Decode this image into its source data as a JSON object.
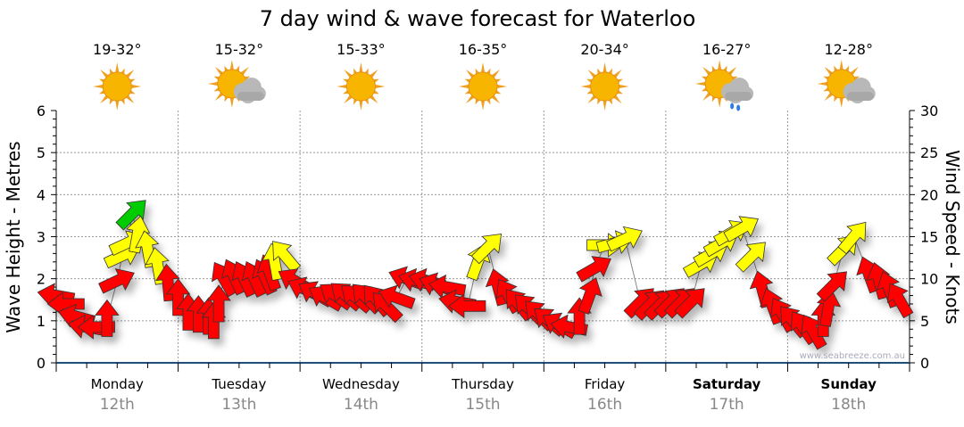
{
  "chart_data": {
    "type": "scatter",
    "title": "7 day wind & wave forecast for Waterloo",
    "ylabel": "Wave Height - Metres",
    "y2label": "Wind Speed - Knots",
    "ylim": [
      0,
      6
    ],
    "y2lim": [
      0,
      30
    ],
    "yticks": [
      "0",
      "1",
      "2",
      "3",
      "4",
      "5",
      "6"
    ],
    "y2ticks": [
      "0",
      "5",
      "10",
      "15",
      "20",
      "25",
      "30"
    ],
    "xlim_hours": [
      0,
      168
    ],
    "grid": true,
    "watermark": "www.seabreeze.com.au",
    "days": [
      {
        "name": "Monday",
        "date": "12th",
        "temp": "19-32°",
        "weather": "sunny",
        "bold": false
      },
      {
        "name": "Tuesday",
        "date": "13th",
        "temp": "15-32°",
        "weather": "partly-cloudy",
        "bold": false
      },
      {
        "name": "Wednesday",
        "date": "14th",
        "temp": "15-33°",
        "weather": "sunny",
        "bold": false
      },
      {
        "name": "Thursday",
        "date": "15th",
        "temp": "16-35°",
        "weather": "sunny",
        "bold": false
      },
      {
        "name": "Friday",
        "date": "16th",
        "temp": "20-34°",
        "weather": "sunny",
        "bold": false
      },
      {
        "name": "Saturday",
        "date": "17th",
        "temp": "16-27°",
        "weather": "showers",
        "bold": true
      },
      {
        "name": "Sunday",
        "date": "18th",
        "temp": "12-28°",
        "weather": "partly-cloudy",
        "bold": true
      }
    ],
    "colors": {
      "R": "#ff0000",
      "Y": "#ffff00",
      "G": "#00cc00"
    },
    "points_legend": "h = hour from Monday 00:00, wave = wave height (m), dir = wind arrow heading (deg), c = arrow colour",
    "points": [
      {
        "h": 0,
        "wave": 1.6,
        "dir": 280,
        "c": "R"
      },
      {
        "h": 2,
        "wave": 1.4,
        "dir": 270,
        "c": "R"
      },
      {
        "h": 4,
        "wave": 1.1,
        "dir": 285,
        "c": "R"
      },
      {
        "h": 6,
        "wave": 0.85,
        "dir": 280,
        "c": "R"
      },
      {
        "h": 8,
        "wave": 0.85,
        "dir": 270,
        "c": "R"
      },
      {
        "h": 10,
        "wave": 1.05,
        "dir": 0,
        "c": "R"
      },
      {
        "h": 12,
        "wave": 1.95,
        "dir": 65,
        "c": "R"
      },
      {
        "h": 13,
        "wave": 2.55,
        "dir": 65,
        "c": "Y"
      },
      {
        "h": 14,
        "wave": 2.85,
        "dir": 65,
        "c": "Y"
      },
      {
        "h": 15,
        "wave": 3.55,
        "dir": 45,
        "c": "G"
      },
      {
        "h": 16,
        "wave": 3.05,
        "dir": 10,
        "c": "Y"
      },
      {
        "h": 18,
        "wave": 2.7,
        "dir": 350,
        "c": "Y"
      },
      {
        "h": 20,
        "wave": 2.3,
        "dir": 350,
        "c": "Y"
      },
      {
        "h": 22,
        "wave": 1.9,
        "dir": 355,
        "c": "R"
      },
      {
        "h": 24,
        "wave": 1.55,
        "dir": 0,
        "c": "R"
      },
      {
        "h": 26,
        "wave": 1.2,
        "dir": 0,
        "c": "R"
      },
      {
        "h": 28,
        "wave": 1.15,
        "dir": 0,
        "c": "R"
      },
      {
        "h": 30,
        "wave": 1.1,
        "dir": 0,
        "c": "R"
      },
      {
        "h": 31,
        "wave": 1.0,
        "dir": 0,
        "c": "R"
      },
      {
        "h": 32,
        "wave": 1.4,
        "dir": 0,
        "c": "R"
      },
      {
        "h": 33,
        "wave": 2.0,
        "dir": 330,
        "c": "R"
      },
      {
        "h": 35,
        "wave": 2.05,
        "dir": 335,
        "c": "R"
      },
      {
        "h": 37,
        "wave": 2.0,
        "dir": 335,
        "c": "R"
      },
      {
        "h": 39,
        "wave": 2.0,
        "dir": 335,
        "c": "R"
      },
      {
        "h": 41,
        "wave": 2.05,
        "dir": 335,
        "c": "R"
      },
      {
        "h": 42,
        "wave": 2.15,
        "dir": 340,
        "c": "R"
      },
      {
        "h": 43,
        "wave": 2.4,
        "dir": 350,
        "c": "Y"
      },
      {
        "h": 45,
        "wave": 2.55,
        "dir": 320,
        "c": "Y"
      },
      {
        "h": 47,
        "wave": 1.95,
        "dir": 300,
        "c": "R"
      },
      {
        "h": 49,
        "wave": 1.75,
        "dir": 295,
        "c": "R"
      },
      {
        "h": 51,
        "wave": 1.65,
        "dir": 300,
        "c": "R"
      },
      {
        "h": 53,
        "wave": 1.55,
        "dir": 300,
        "c": "R"
      },
      {
        "h": 55,
        "wave": 1.6,
        "dir": 305,
        "c": "R"
      },
      {
        "h": 57,
        "wave": 1.6,
        "dir": 310,
        "c": "R"
      },
      {
        "h": 59,
        "wave": 1.55,
        "dir": 310,
        "c": "R"
      },
      {
        "h": 61,
        "wave": 1.55,
        "dir": 315,
        "c": "R"
      },
      {
        "h": 63,
        "wave": 1.5,
        "dir": 320,
        "c": "R"
      },
      {
        "h": 65,
        "wave": 1.35,
        "dir": 315,
        "c": "R"
      },
      {
        "h": 67,
        "wave": 1.55,
        "dir": 290,
        "c": "R"
      },
      {
        "h": 69,
        "wave": 2.0,
        "dir": 290,
        "c": "R"
      },
      {
        "h": 71,
        "wave": 1.95,
        "dir": 285,
        "c": "R"
      },
      {
        "h": 73,
        "wave": 1.95,
        "dir": 285,
        "c": "R"
      },
      {
        "h": 75,
        "wave": 1.85,
        "dir": 290,
        "c": "R"
      },
      {
        "h": 77,
        "wave": 1.8,
        "dir": 280,
        "c": "R"
      },
      {
        "h": 79,
        "wave": 1.45,
        "dir": 280,
        "c": "R"
      },
      {
        "h": 81,
        "wave": 1.35,
        "dir": 270,
        "c": "R"
      },
      {
        "h": 83,
        "wave": 2.4,
        "dir": 20,
        "c": "Y"
      },
      {
        "h": 85,
        "wave": 2.75,
        "dir": 45,
        "c": "Y"
      },
      {
        "h": 87,
        "wave": 1.8,
        "dir": 345,
        "c": "R"
      },
      {
        "h": 89,
        "wave": 1.6,
        "dir": 330,
        "c": "R"
      },
      {
        "h": 91,
        "wave": 1.4,
        "dir": 320,
        "c": "R"
      },
      {
        "h": 93,
        "wave": 1.3,
        "dir": 315,
        "c": "R"
      },
      {
        "h": 95,
        "wave": 1.15,
        "dir": 315,
        "c": "R"
      },
      {
        "h": 97,
        "wave": 1.0,
        "dir": 310,
        "c": "R"
      },
      {
        "h": 99,
        "wave": 0.9,
        "dir": 300,
        "c": "R"
      },
      {
        "h": 101,
        "wave": 0.85,
        "dir": 280,
        "c": "R"
      },
      {
        "h": 103,
        "wave": 1.1,
        "dir": 0,
        "c": "R"
      },
      {
        "h": 105,
        "wave": 1.6,
        "dir": 20,
        "c": "R"
      },
      {
        "h": 106,
        "wave": 2.25,
        "dir": 60,
        "c": "R"
      },
      {
        "h": 108,
        "wave": 2.8,
        "dir": 90,
        "c": "Y"
      },
      {
        "h": 110,
        "wave": 2.85,
        "dir": 75,
        "c": "Y"
      },
      {
        "h": 112,
        "wave": 2.95,
        "dir": 65,
        "c": "Y"
      },
      {
        "h": 115,
        "wave": 1.45,
        "dir": 45,
        "c": "R"
      },
      {
        "h": 117,
        "wave": 1.4,
        "dir": 45,
        "c": "R"
      },
      {
        "h": 119,
        "wave": 1.4,
        "dir": 45,
        "c": "R"
      },
      {
        "h": 121,
        "wave": 1.45,
        "dir": 45,
        "c": "R"
      },
      {
        "h": 123,
        "wave": 1.45,
        "dir": 45,
        "c": "R"
      },
      {
        "h": 125,
        "wave": 1.45,
        "dir": 45,
        "c": "R"
      },
      {
        "h": 127,
        "wave": 2.35,
        "dir": 60,
        "c": "Y"
      },
      {
        "h": 129,
        "wave": 2.6,
        "dir": 60,
        "c": "Y"
      },
      {
        "h": 131,
        "wave": 2.85,
        "dir": 60,
        "c": "Y"
      },
      {
        "h": 133,
        "wave": 3.1,
        "dir": 60,
        "c": "Y"
      },
      {
        "h": 135,
        "wave": 3.2,
        "dir": 60,
        "c": "Y"
      },
      {
        "h": 137,
        "wave": 2.55,
        "dir": 45,
        "c": "Y"
      },
      {
        "h": 139,
        "wave": 1.75,
        "dir": 345,
        "c": "R"
      },
      {
        "h": 141,
        "wave": 1.35,
        "dir": 340,
        "c": "R"
      },
      {
        "h": 143,
        "wave": 1.15,
        "dir": 330,
        "c": "R"
      },
      {
        "h": 145,
        "wave": 1.0,
        "dir": 320,
        "c": "R"
      },
      {
        "h": 147,
        "wave": 0.85,
        "dir": 325,
        "c": "R"
      },
      {
        "h": 149,
        "wave": 0.75,
        "dir": 330,
        "c": "R"
      },
      {
        "h": 151,
        "wave": 1.05,
        "dir": 0,
        "c": "R"
      },
      {
        "h": 152,
        "wave": 1.3,
        "dir": 10,
        "c": "R"
      },
      {
        "h": 153,
        "wave": 1.85,
        "dir": 45,
        "c": "R"
      },
      {
        "h": 155,
        "wave": 2.7,
        "dir": 45,
        "c": "Y"
      },
      {
        "h": 157,
        "wave": 3.0,
        "dir": 40,
        "c": "Y"
      },
      {
        "h": 160,
        "wave": 2.1,
        "dir": 340,
        "c": "R"
      },
      {
        "h": 162,
        "wave": 1.95,
        "dir": 345,
        "c": "R"
      },
      {
        "h": 164,
        "wave": 1.75,
        "dir": 340,
        "c": "R"
      },
      {
        "h": 166,
        "wave": 1.5,
        "dir": 330,
        "c": "R"
      }
    ]
  }
}
